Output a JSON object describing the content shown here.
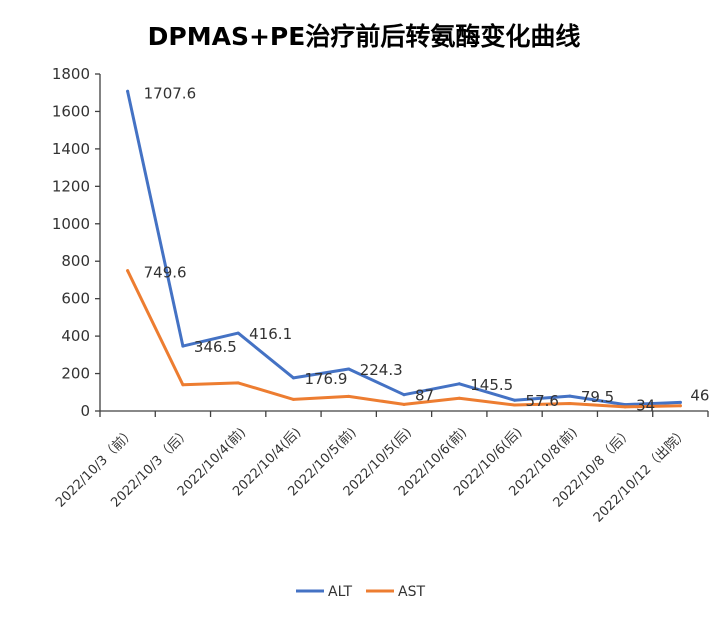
{
  "chart_data": {
    "type": "line",
    "title": "DPMAS+PE治疗前后转氨酶变化曲线",
    "xlabel": "",
    "ylabel": "",
    "ylim": [
      0,
      1800
    ],
    "yticks": [
      0,
      200,
      400,
      600,
      800,
      1000,
      1200,
      1400,
      1600,
      1800
    ],
    "categories": [
      "2022/10/3（前）",
      "2022/10/3（后）",
      "2022/10/4(前)",
      "2022/10/4(后)",
      "2022/10/5(前)",
      "2022/10/5(后)",
      "2022/10/6(前)",
      "2022/10/6(后)",
      "2022/10/8(前)",
      "2022/10/8（后）",
      "2022/10/12（出院）"
    ],
    "series": [
      {
        "name": "ALT",
        "color": "#4472C4",
        "values": [
          1707.6,
          346.5,
          416.1,
          176.9,
          224.3,
          87,
          145.5,
          57.6,
          79.5,
          34,
          46
        ],
        "labels": [
          "1707.6",
          "346.5",
          "416.1",
          "176.9",
          "224.3",
          "87",
          "145.5",
          "57.6",
          "79.5",
          "34",
          "46"
        ]
      },
      {
        "name": "AST",
        "color": "#ED7D31",
        "values": [
          749.6,
          140,
          150,
          62,
          78,
          35,
          68,
          32,
          40,
          22,
          28
        ],
        "labels": [
          "749.6"
        ]
      }
    ],
    "grid": false,
    "legend_position": "bottom"
  }
}
